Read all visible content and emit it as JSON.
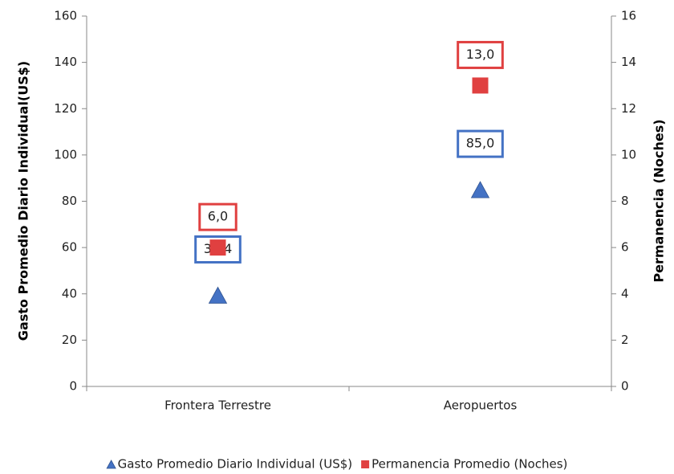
{
  "chart_data": {
    "type": "scatter",
    "categories": [
      "Frontera Terrestre",
      "Aeropuertos"
    ],
    "series": [
      {
        "name": "Gasto Promedio Diario Individual (US$)",
        "color": "#4472c4",
        "marker": "triangle",
        "values": [
          39.4,
          85.0
        ],
        "value_labels": [
          "39,4",
          "85,0"
        ]
      },
      {
        "name": "Permanencia Promedio (Noches)",
        "color": "#e04040",
        "marker": "square",
        "axis": "y2",
        "values": [
          6.0,
          13.0
        ],
        "value_labels": [
          "6,0",
          "13,0"
        ]
      }
    ],
    "y_label": "Gasto Promedio Diario Individual(US$)",
    "y2_label": "Permanencia  (Noches)",
    "ylim": [
      0,
      160
    ],
    "yticks": [
      0,
      20,
      40,
      60,
      80,
      100,
      120,
      140,
      160
    ],
    "y2lim": [
      0,
      16
    ],
    "y2ticks": [
      0,
      2,
      4,
      6,
      8,
      10,
      12,
      14,
      16
    ],
    "legend": "bottom"
  }
}
